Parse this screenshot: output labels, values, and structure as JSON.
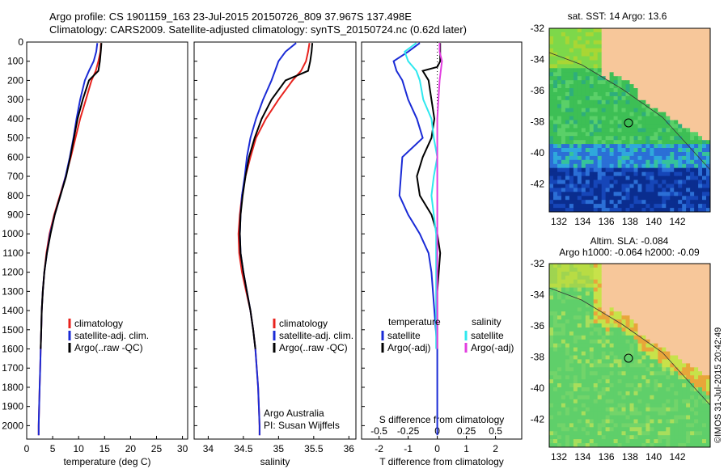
{
  "header": {
    "line1": "Argo profile: CS 1901159_163 23-Jul-2015 20150726_809 37.967S 137.498E",
    "line2": "Climatology: CARS2009. Satellite-adjusted climatology: synTS_20150724.nc (0.62d later)"
  },
  "credit": "©IMOS 31-Jul-2015 20:42:49",
  "colors": {
    "climatology": "#e8231e",
    "satellite": "#1a2bd6",
    "argo": "#000000",
    "salinity_sat": "#2fe8ef",
    "salinity_argo": "#e23ee0",
    "land": "#f7c79a",
    "sst_map_note": "blue-green-yellow colormap"
  },
  "chart_data": [
    {
      "type": "line",
      "id": "temperature",
      "xlabel": "temperature (deg C)",
      "ylabel": "",
      "xlim": [
        0,
        31
      ],
      "ylim": [
        2070,
        0
      ],
      "xticks": [
        0,
        5,
        10,
        15,
        20,
        25,
        30
      ],
      "yticks": [
        0,
        100,
        200,
        300,
        400,
        500,
        600,
        700,
        800,
        900,
        1000,
        1100,
        1200,
        1300,
        1400,
        1500,
        1600,
        1700,
        1800,
        1900,
        2000
      ],
      "legend": [
        "climatology",
        "satellite-adj. clim.",
        "Argo(..raw -QC)"
      ],
      "series": [
        {
          "name": "climatology",
          "points": [
            [
              14.3,
              5
            ],
            [
              14.2,
              50
            ],
            [
              13.8,
              100
            ],
            [
              13.3,
              150
            ],
            [
              12.5,
              200
            ],
            [
              11.4,
              300
            ],
            [
              10.3,
              400
            ],
            [
              9.4,
              500
            ],
            [
              8.5,
              600
            ],
            [
              7.5,
              700
            ],
            [
              6.4,
              800
            ],
            [
              5.3,
              900
            ],
            [
              4.4,
              1000
            ],
            [
              3.8,
              1100
            ],
            [
              3.4,
              1200
            ],
            [
              3.1,
              1300
            ],
            [
              2.9,
              1400
            ],
            [
              2.8,
              1500
            ],
            [
              2.7,
              1600
            ],
            [
              2.6,
              1700
            ],
            [
              2.5,
              1800
            ],
            [
              2.4,
              1900
            ],
            [
              2.3,
              2000
            ],
            [
              2.3,
              2050
            ]
          ]
        },
        {
          "name": "satellite-adj. clim.",
          "points": [
            [
              13.6,
              5
            ],
            [
              13.4,
              50
            ],
            [
              12.9,
              100
            ],
            [
              12.0,
              150
            ],
            [
              11.2,
              200
            ],
            [
              10.3,
              300
            ],
            [
              9.6,
              400
            ],
            [
              9.0,
              500
            ],
            [
              8.3,
              600
            ],
            [
              7.5,
              700
            ],
            [
              6.5,
              800
            ],
            [
              5.4,
              900
            ],
            [
              4.5,
              1000
            ],
            [
              3.9,
              1100
            ],
            [
              3.4,
              1200
            ],
            [
              3.1,
              1300
            ],
            [
              2.9,
              1400
            ],
            [
              2.8,
              1500
            ],
            [
              2.7,
              1600
            ],
            [
              2.6,
              1700
            ],
            [
              2.5,
              1800
            ],
            [
              2.4,
              1900
            ],
            [
              2.3,
              2000
            ],
            [
              2.3,
              2050
            ]
          ]
        },
        {
          "name": "Argo(..raw -QC)",
          "points": [
            [
              14.4,
              5
            ],
            [
              14.3,
              40
            ],
            [
              14.1,
              100
            ],
            [
              13.8,
              150
            ],
            [
              12.0,
              200
            ],
            [
              10.8,
              300
            ],
            [
              9.8,
              400
            ],
            [
              9.1,
              500
            ],
            [
              8.4,
              600
            ],
            [
              7.6,
              700
            ],
            [
              6.5,
              800
            ],
            [
              5.4,
              900
            ],
            [
              4.6,
              1000
            ],
            [
              3.9,
              1100
            ],
            [
              3.4,
              1200
            ],
            [
              3.1,
              1300
            ],
            [
              2.9,
              1400
            ],
            [
              2.8,
              1500
            ],
            [
              2.7,
              1600
            ]
          ]
        }
      ],
      "footnote": []
    },
    {
      "type": "line",
      "id": "salinity",
      "xlabel": "salinity",
      "ylabel": "",
      "xlim": [
        33.8,
        36.1
      ],
      "ylim": [
        2070,
        0
      ],
      "xticks": [
        34,
        34.5,
        35,
        35.5,
        36
      ],
      "legend": [
        "climatology",
        "satellite-adj. clim.",
        "Argo(..raw -QC)"
      ],
      "series": [
        {
          "name": "climatology",
          "points": [
            [
              35.44,
              5
            ],
            [
              35.42,
              50
            ],
            [
              35.39,
              100
            ],
            [
              35.32,
              150
            ],
            [
              35.2,
              200
            ],
            [
              35.0,
              300
            ],
            [
              34.82,
              400
            ],
            [
              34.68,
              500
            ],
            [
              34.6,
              600
            ],
            [
              34.53,
              700
            ],
            [
              34.48,
              800
            ],
            [
              34.45,
              900
            ],
            [
              34.43,
              1000
            ],
            [
              34.44,
              1100
            ],
            [
              34.48,
              1200
            ],
            [
              34.54,
              1300
            ],
            [
              34.6,
              1400
            ],
            [
              34.64,
              1500
            ],
            [
              34.67,
              1600
            ],
            [
              34.69,
              1700
            ],
            [
              34.71,
              1800
            ],
            [
              34.72,
              1900
            ],
            [
              34.73,
              2000
            ],
            [
              34.73,
              2050
            ]
          ]
        },
        {
          "name": "satellite-adj. clim.",
          "points": [
            [
              35.25,
              5
            ],
            [
              35.1,
              50
            ],
            [
              35.0,
              100
            ],
            [
              34.95,
              150
            ],
            [
              34.9,
              200
            ],
            [
              34.78,
              300
            ],
            [
              34.68,
              400
            ],
            [
              34.6,
              500
            ],
            [
              34.55,
              600
            ],
            [
              34.52,
              700
            ],
            [
              34.48,
              800
            ],
            [
              34.46,
              900
            ],
            [
              34.45,
              1000
            ],
            [
              34.46,
              1100
            ],
            [
              34.5,
              1200
            ],
            [
              34.55,
              1300
            ],
            [
              34.6,
              1400
            ],
            [
              34.64,
              1500
            ],
            [
              34.67,
              1600
            ],
            [
              34.69,
              1700
            ],
            [
              34.71,
              1800
            ],
            [
              34.72,
              1900
            ],
            [
              34.73,
              2000
            ],
            [
              34.73,
              2050
            ]
          ]
        },
        {
          "name": "Argo(..raw -QC)",
          "points": [
            [
              35.48,
              5
            ],
            [
              35.47,
              50
            ],
            [
              35.45,
              100
            ],
            [
              35.42,
              150
            ],
            [
              35.1,
              200
            ],
            [
              34.9,
              300
            ],
            [
              34.76,
              400
            ],
            [
              34.66,
              500
            ],
            [
              34.58,
              600
            ],
            [
              34.53,
              700
            ],
            [
              34.49,
              800
            ],
            [
              34.46,
              900
            ],
            [
              34.45,
              1000
            ],
            [
              34.46,
              1100
            ],
            [
              34.5,
              1200
            ],
            [
              34.55,
              1300
            ],
            [
              34.6,
              1400
            ],
            [
              34.64,
              1500
            ],
            [
              34.67,
              1600
            ]
          ]
        }
      ],
      "footnote": [
        "Argo Australia",
        "PI: Susan Wijffels"
      ]
    },
    {
      "type": "line",
      "id": "difference",
      "xlabel": "T difference from climatology",
      "x2label": "S difference from climatology",
      "xlim": [
        -2.6,
        2.9
      ],
      "ylim": [
        2070,
        0
      ],
      "xticks": [
        "-2",
        "-1",
        "0",
        "1",
        "2"
      ],
      "x2ticks": [
        "-0.5",
        "-0.25",
        "0",
        "0.25",
        "0.5"
      ],
      "legend_temperature": {
        "title": "temperature",
        "entries": [
          "satellite",
          "Argo(-adj)"
        ]
      },
      "legend_salinity": {
        "title": "salinity",
        "entries": [
          "satellite",
          "Argo(-adj)"
        ]
      },
      "series": [
        {
          "name": "T satellite",
          "points": [
            [
              -0.6,
              5
            ],
            [
              -1.0,
              50
            ],
            [
              -1.5,
              100
            ],
            [
              -1.4,
              150
            ],
            [
              -1.2,
              200
            ],
            [
              -1.0,
              300
            ],
            [
              -0.7,
              400
            ],
            [
              -0.5,
              500
            ],
            [
              -1.2,
              600
            ],
            [
              -1.3,
              800
            ],
            [
              -1.0,
              900
            ],
            [
              -0.6,
              1000
            ],
            [
              -0.3,
              1100
            ],
            [
              -0.2,
              1200
            ],
            [
              -0.1,
              1400
            ],
            [
              0,
              1600
            ],
            [
              0,
              2050
            ]
          ]
        },
        {
          "name": "T Argo(-adj)",
          "points": [
            [
              0.1,
              5
            ],
            [
              0.1,
              60
            ],
            [
              0.1,
              100
            ],
            [
              0,
              130
            ],
            [
              -0.5,
              150
            ],
            [
              -0.3,
              200
            ],
            [
              -0.2,
              300
            ],
            [
              -0.1,
              400
            ],
            [
              -0.2,
              500
            ],
            [
              -0.5,
              600
            ],
            [
              -0.7,
              700
            ],
            [
              -0.6,
              800
            ],
            [
              -0.2,
              900
            ],
            [
              0,
              1000
            ],
            [
              0.1,
              1100
            ],
            [
              0,
              1300
            ],
            [
              0,
              1600
            ]
          ]
        },
        {
          "name": "S satellite",
          "points": [
            [
              -0.18,
              5
            ],
            [
              -0.28,
              50
            ],
            [
              -0.25,
              100
            ],
            [
              -0.18,
              150
            ],
            [
              -0.15,
              200
            ],
            [
              -0.12,
              300
            ],
            [
              -0.05,
              400
            ],
            [
              -0.03,
              500
            ],
            [
              0,
              600
            ],
            [
              -0.03,
              700
            ],
            [
              -0.05,
              800
            ],
            [
              -0.01,
              1000
            ],
            [
              -0.01,
              1200
            ],
            [
              -0.01,
              1600
            ]
          ]
        },
        {
          "name": "S Argo(-adj)",
          "points": [
            [
              0.02,
              5
            ],
            [
              0.02,
              50
            ],
            [
              0.04,
              100
            ],
            [
              0.03,
              150
            ],
            [
              0.02,
              200
            ],
            [
              0.01,
              300
            ],
            [
              0,
              400
            ],
            [
              0,
              1600
            ]
          ]
        }
      ],
      "footnote": []
    },
    {
      "type": "heatmap",
      "id": "sst_map",
      "title": "sat. SST: 14 Argo: 13.6",
      "xticks": [
        "132",
        "134",
        "136",
        "138",
        "140",
        "142"
      ],
      "yticks": [
        "-32",
        "-34",
        "-36",
        "-38",
        "-40",
        "-42"
      ]
    },
    {
      "type": "heatmap",
      "id": "sla_map",
      "title_line1": "Altim. SLA: -0.084",
      "title_line2": "Argo h1000: -0.064 h2000: -0.09",
      "xticks": [
        "132",
        "134",
        "136",
        "138",
        "140",
        "142"
      ],
      "yticks": [
        "-32",
        "-34",
        "-36",
        "-38",
        "-40",
        "-42"
      ]
    }
  ]
}
